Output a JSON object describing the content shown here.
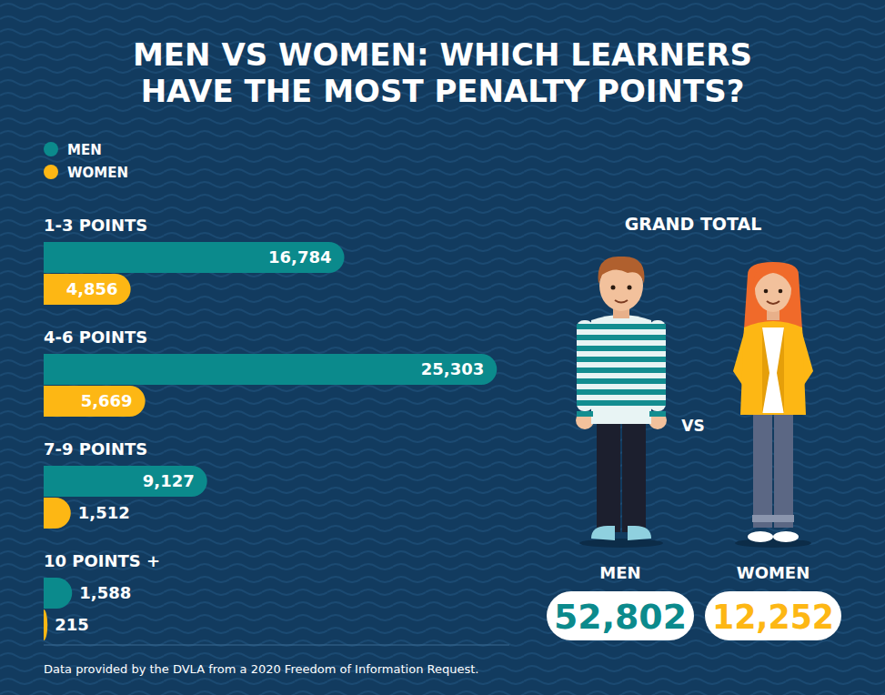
{
  "chart_data": {
    "type": "bar",
    "orientation": "horizontal",
    "title": "MEN VS WOMEN: WHICH LEARNERS HAVE THE MOST PENALTY POINTS?",
    "categories": [
      "1-3 POINTS",
      "4-6 POINTS",
      "7-9 POINTS",
      "10 POINTS +"
    ],
    "series": [
      {
        "name": "MEN",
        "color": "#0b8a8c",
        "values": [
          16784,
          25303,
          9127,
          1588
        ],
        "value_labels": [
          "16,784",
          "25,303",
          "9,127",
          "1,588"
        ]
      },
      {
        "name": "WOMEN",
        "color": "#fdb714",
        "values": [
          4856,
          5669,
          1512,
          215
        ],
        "value_labels": [
          "4,856",
          "5,669",
          "1,512",
          "215"
        ]
      }
    ],
    "xlim": [
      0,
      26000
    ],
    "tick_labels": false,
    "data_labels": true,
    "legend": "top-left",
    "totals": {
      "title": "GRAND TOTAL",
      "separator": "VS",
      "values": [
        52802,
        12252
      ],
      "value_labels": [
        "52,802",
        "12,252"
      ]
    },
    "source": "Data provided by the DVLA from a 2020 Freedom of Information Request."
  }
}
